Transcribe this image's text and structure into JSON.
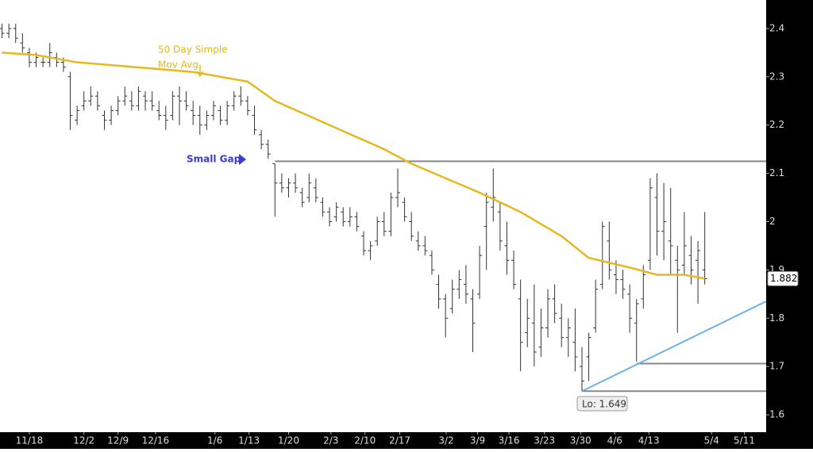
{
  "chart_data": {
    "type": "ohlc",
    "xlim": [
      -0.3,
      112
    ],
    "ylim": [
      1.564,
      2.459
    ],
    "xticks": [
      {
        "value": 4,
        "label": "11/18"
      },
      {
        "value": 12,
        "label": "12/2"
      },
      {
        "value": 17,
        "label": "12/9"
      },
      {
        "value": 22.5,
        "label": "12/16"
      },
      {
        "value": 31.2,
        "label": "1/6"
      },
      {
        "value": 36.2,
        "label": "1/13"
      },
      {
        "value": 42,
        "label": "1/20"
      },
      {
        "value": 48.2,
        "label": "2/3"
      },
      {
        "value": 53.2,
        "label": "2/10"
      },
      {
        "value": 58.3,
        "label": "2/17"
      },
      {
        "value": 65.1,
        "label": "3/2"
      },
      {
        "value": 69.7,
        "label": "3/9"
      },
      {
        "value": 74.3,
        "label": "3/16"
      },
      {
        "value": 79.5,
        "label": "3/23"
      },
      {
        "value": 84.8,
        "label": "3/30"
      },
      {
        "value": 89.8,
        "label": "4/6"
      },
      {
        "value": 94.8,
        "label": "4/13"
      },
      {
        "value": 104,
        "label": "5/4"
      },
      {
        "value": 108.8,
        "label": "5/11"
      }
    ],
    "yticks": [
      1.6,
      1.7,
      1.8,
      1.9,
      2,
      2.1,
      2.2,
      2.3,
      2.4
    ],
    "bar_color": "#333333",
    "bars": [
      [
        2.4,
        2.41,
        2.38,
        2.39
      ],
      [
        2.39,
        2.41,
        2.38,
        2.4
      ],
      [
        2.4,
        2.41,
        2.37,
        2.38
      ],
      [
        2.37,
        2.39,
        2.35,
        2.36
      ],
      [
        2.35,
        2.36,
        2.32,
        2.33
      ],
      [
        2.33,
        2.35,
        2.32,
        2.34
      ],
      [
        2.33,
        2.34,
        2.32,
        2.33
      ],
      [
        2.33,
        2.37,
        2.32,
        2.35
      ],
      [
        2.34,
        2.35,
        2.32,
        2.33
      ],
      [
        2.33,
        2.34,
        2.31,
        2.32
      ],
      [
        2.3,
        2.31,
        2.19,
        2.22
      ],
      [
        2.21,
        2.24,
        2.2,
        2.23
      ],
      [
        2.24,
        2.27,
        2.23,
        2.25
      ],
      [
        2.25,
        2.28,
        2.24,
        2.26
      ],
      [
        2.26,
        2.27,
        2.23,
        2.24
      ],
      [
        2.22,
        2.23,
        2.19,
        2.21
      ],
      [
        2.21,
        2.24,
        2.2,
        2.23
      ],
      [
        2.23,
        2.26,
        2.22,
        2.25
      ],
      [
        2.25,
        2.28,
        2.24,
        2.26
      ],
      [
        2.25,
        2.27,
        2.23,
        2.24
      ],
      [
        2.24,
        2.28,
        2.23,
        2.27
      ],
      [
        2.26,
        2.27,
        2.23,
        2.25
      ],
      [
        2.25,
        2.27,
        2.23,
        2.24
      ],
      [
        2.23,
        2.25,
        2.21,
        2.22
      ],
      [
        2.22,
        2.24,
        2.19,
        2.21
      ],
      [
        2.22,
        2.27,
        2.21,
        2.26
      ],
      [
        2.26,
        2.28,
        2.2,
        2.25
      ],
      [
        2.25,
        2.27,
        2.23,
        2.24
      ],
      [
        2.23,
        2.25,
        2.2,
        2.22
      ],
      [
        2.22,
        2.24,
        2.18,
        2.2
      ],
      [
        2.2,
        2.23,
        2.19,
        2.22
      ],
      [
        2.22,
        2.25,
        2.21,
        2.24
      ],
      [
        2.23,
        2.24,
        2.2,
        2.21
      ],
      [
        2.21,
        2.25,
        2.2,
        2.24
      ],
      [
        2.24,
        2.27,
        2.23,
        2.26
      ],
      [
        2.26,
        2.28,
        2.24,
        2.25
      ],
      [
        2.25,
        2.26,
        2.22,
        2.23
      ],
      [
        2.22,
        2.24,
        2.18,
        2.19
      ],
      [
        2.18,
        2.19,
        2.15,
        2.16
      ],
      [
        2.16,
        2.17,
        2.13,
        2.14
      ],
      [
        2.12,
        2.12,
        2.01,
        2.08
      ],
      [
        2.08,
        2.1,
        2.06,
        2.07
      ],
      [
        2.07,
        2.09,
        2.05,
        2.08
      ],
      [
        2.08,
        2.1,
        2.06,
        2.07
      ],
      [
        2.06,
        2.07,
        2.03,
        2.04
      ],
      [
        2.05,
        2.1,
        2.04,
        2.08
      ],
      [
        2.07,
        2.09,
        2.04,
        2.05
      ],
      [
        2.04,
        2.05,
        2.01,
        2.02
      ],
      [
        2.02,
        2.03,
        1.99,
        2.0
      ],
      [
        2.01,
        2.04,
        2.0,
        2.03
      ],
      [
        2.02,
        2.03,
        1.99,
        2.0
      ],
      [
        2.0,
        2.03,
        1.99,
        2.01
      ],
      [
        2.01,
        2.02,
        1.98,
        1.99
      ],
      [
        1.97,
        1.98,
        1.93,
        1.94
      ],
      [
        1.94,
        1.96,
        1.92,
        1.95
      ],
      [
        1.96,
        2.01,
        1.95,
        2.0
      ],
      [
        2.0,
        2.02,
        1.97,
        1.98
      ],
      [
        1.98,
        2.06,
        1.97,
        2.05
      ],
      [
        2.05,
        2.11,
        2.03,
        2.06
      ],
      [
        2.04,
        2.05,
        2.0,
        2.01
      ],
      [
        2.0,
        2.02,
        1.96,
        1.97
      ],
      [
        1.96,
        1.98,
        1.94,
        1.95
      ],
      [
        1.95,
        1.97,
        1.93,
        1.94
      ],
      [
        1.93,
        1.94,
        1.89,
        1.9
      ],
      [
        1.87,
        1.89,
        1.82,
        1.84
      ],
      [
        1.84,
        1.85,
        1.76,
        1.8
      ],
      [
        1.82,
        1.88,
        1.81,
        1.86
      ],
      [
        1.86,
        1.9,
        1.84,
        1.88
      ],
      [
        1.87,
        1.91,
        1.83,
        1.85
      ],
      [
        1.84,
        1.86,
        1.73,
        1.79
      ],
      [
        1.85,
        1.95,
        1.84,
        1.93
      ],
      [
        1.99,
        2.06,
        1.9,
        2.04
      ],
      [
        2.03,
        2.11,
        2.0,
        2.05
      ],
      [
        2.02,
        2.04,
        1.94,
        1.96
      ],
      [
        1.95,
        2.0,
        1.89,
        1.92
      ],
      [
        1.92,
        1.94,
        1.86,
        1.87
      ],
      [
        1.84,
        1.88,
        1.69,
        1.75
      ],
      [
        1.77,
        1.84,
        1.74,
        1.8
      ],
      [
        1.79,
        1.87,
        1.7,
        1.73
      ],
      [
        1.74,
        1.82,
        1.72,
        1.78
      ],
      [
        1.78,
        1.86,
        1.76,
        1.84
      ],
      [
        1.84,
        1.87,
        1.79,
        1.81
      ],
      [
        1.8,
        1.83,
        1.74,
        1.76
      ],
      [
        1.76,
        1.8,
        1.72,
        1.78
      ],
      [
        1.75,
        1.82,
        1.69,
        1.72
      ],
      [
        1.7,
        1.74,
        1.649,
        1.67
      ],
      [
        1.72,
        1.77,
        1.67,
        1.76
      ],
      [
        1.78,
        1.88,
        1.77,
        1.86
      ],
      [
        1.87,
        2.0,
        1.86,
        1.99
      ],
      [
        1.96,
        2.0,
        1.88,
        1.9
      ],
      [
        1.89,
        1.92,
        1.85,
        1.88
      ],
      [
        1.88,
        1.9,
        1.84,
        1.86
      ],
      [
        1.85,
        1.87,
        1.77,
        1.8
      ],
      [
        1.79,
        1.84,
        1.71,
        1.83
      ],
      [
        1.84,
        1.91,
        1.82,
        1.89
      ],
      [
        1.92,
        2.09,
        1.9,
        2.07
      ],
      [
        2.05,
        2.1,
        1.93,
        1.98
      ],
      [
        1.98,
        2.08,
        1.92,
        2.0
      ],
      [
        1.96,
        2.07,
        1.89,
        1.95
      ],
      [
        1.92,
        1.95,
        1.77,
        1.9
      ],
      [
        1.91,
        2.02,
        1.89,
        1.95
      ],
      [
        1.93,
        1.97,
        1.87,
        1.9
      ],
      [
        1.92,
        1.96,
        1.83,
        1.94
      ],
      [
        1.9,
        2.02,
        1.87,
        1.882
      ]
    ],
    "moving_average": {
      "color": "#e6b820",
      "x": [
        0,
        5,
        11,
        28,
        36,
        40,
        48,
        56,
        60,
        70,
        76,
        82,
        86,
        92,
        96,
        100,
        103
      ],
      "values": [
        2.35,
        2.345,
        2.33,
        2.31,
        2.29,
        2.25,
        2.2,
        2.15,
        2.12,
        2.06,
        2.02,
        1.97,
        1.925,
        1.905,
        1.89,
        1.89,
        1.882
      ]
    },
    "ma_label": [
      "50 Day Simple",
      "Mov Avg"
    ],
    "gap_label": "Small Gap",
    "levels": [
      {
        "y": 2.125,
        "x0": 40
      },
      {
        "y": 1.706,
        "x0": 93
      },
      {
        "y": 1.649,
        "x0": 85
      }
    ],
    "level_color": "#888888",
    "trendline": {
      "color": "#6cb4e4",
      "x": [
        85,
        112
      ],
      "y": [
        1.649,
        1.835
      ]
    },
    "low_label": "Lo: 1.649",
    "last_price": {
      "value": 1.882,
      "label": "1.882"
    }
  }
}
